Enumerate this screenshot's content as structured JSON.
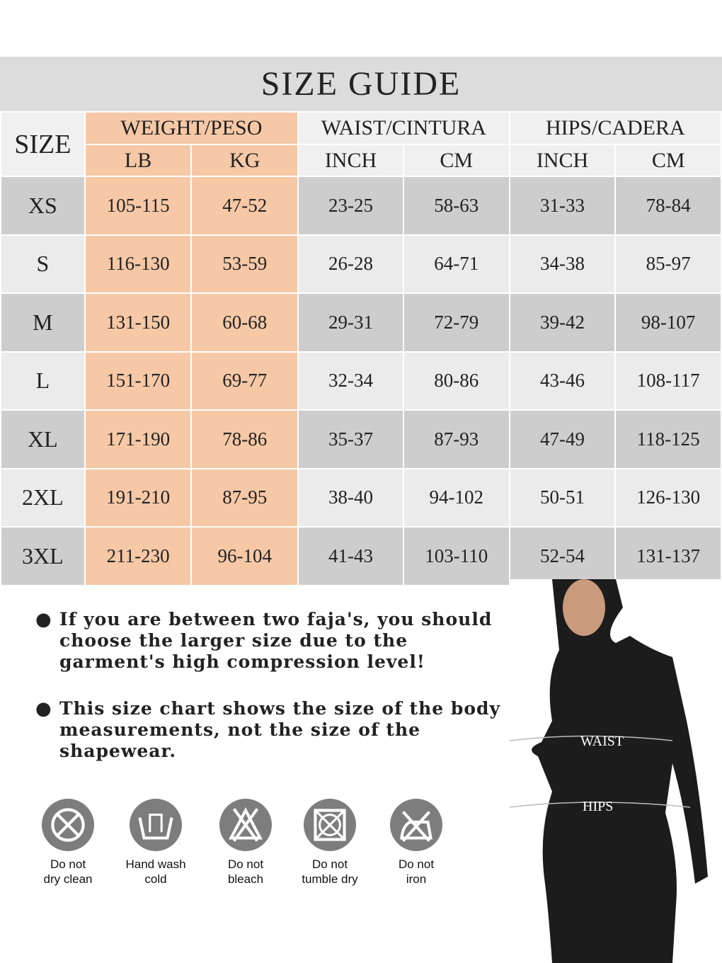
{
  "title": "SIZE GUIDE",
  "headers": {
    "size": "SIZE",
    "weight": "WEIGHT/PESO",
    "waist": "WAIST/CINTURA",
    "hips": "HIPS/CADERA",
    "lb": "LB",
    "kg": "KG",
    "waist_inch": "INCH",
    "waist_cm": "CM",
    "hips_inch": "INCH",
    "hips_cm": "CM"
  },
  "rows": [
    [
      "XS",
      "105-115",
      "47-52",
      "23-25",
      "58-63",
      "31-33",
      "78-84"
    ],
    [
      "S",
      "116-130",
      "53-59",
      "26-28",
      "64-71",
      "34-38",
      "85-97"
    ],
    [
      "M",
      "131-150",
      "60-68",
      "29-31",
      "72-79",
      "39-42",
      "98-107"
    ],
    [
      "L",
      "151-170",
      "69-77",
      "32-34",
      "80-86",
      "43-46",
      "108-117"
    ],
    [
      "XL",
      "171-190",
      "78-86",
      "35-37",
      "87-93",
      "47-49",
      "118-125"
    ],
    [
      "2XL",
      "191-210",
      "87-95",
      "38-40",
      "94-102",
      "50-51",
      "126-130"
    ],
    [
      "3XL",
      "211-230",
      "96-104",
      "41-43",
      "103-110",
      "52-54",
      "131-137"
    ]
  ],
  "notes": [
    "If you are between two faja's, you should choose the larger size due to the garment's high compression level!",
    "This size chart shows the size of the body measurements, not the size of the shapewear."
  ],
  "model_labels": {
    "waist": "WAIST",
    "hips": "HIPS"
  },
  "care": [
    {
      "icon": "no-dry-clean-icon",
      "l1": "Do not",
      "l2": "dry clean"
    },
    {
      "icon": "hand-wash-icon",
      "l1": "Hand wash",
      "l2": "cold"
    },
    {
      "icon": "no-bleach-icon",
      "l1": "Do not",
      "l2": "bleach"
    },
    {
      "icon": "no-tumble-dry-icon",
      "l1": "Do not",
      "l2": "tumble dry"
    },
    {
      "icon": "no-iron-icon",
      "l1": "Do not",
      "l2": "iron"
    }
  ],
  "colors": {
    "weight_peach": "#f6c8a6",
    "row_dark": "#cdcdcd",
    "row_light": "#ebebeb",
    "icon_gray": "#7d7d7d"
  }
}
